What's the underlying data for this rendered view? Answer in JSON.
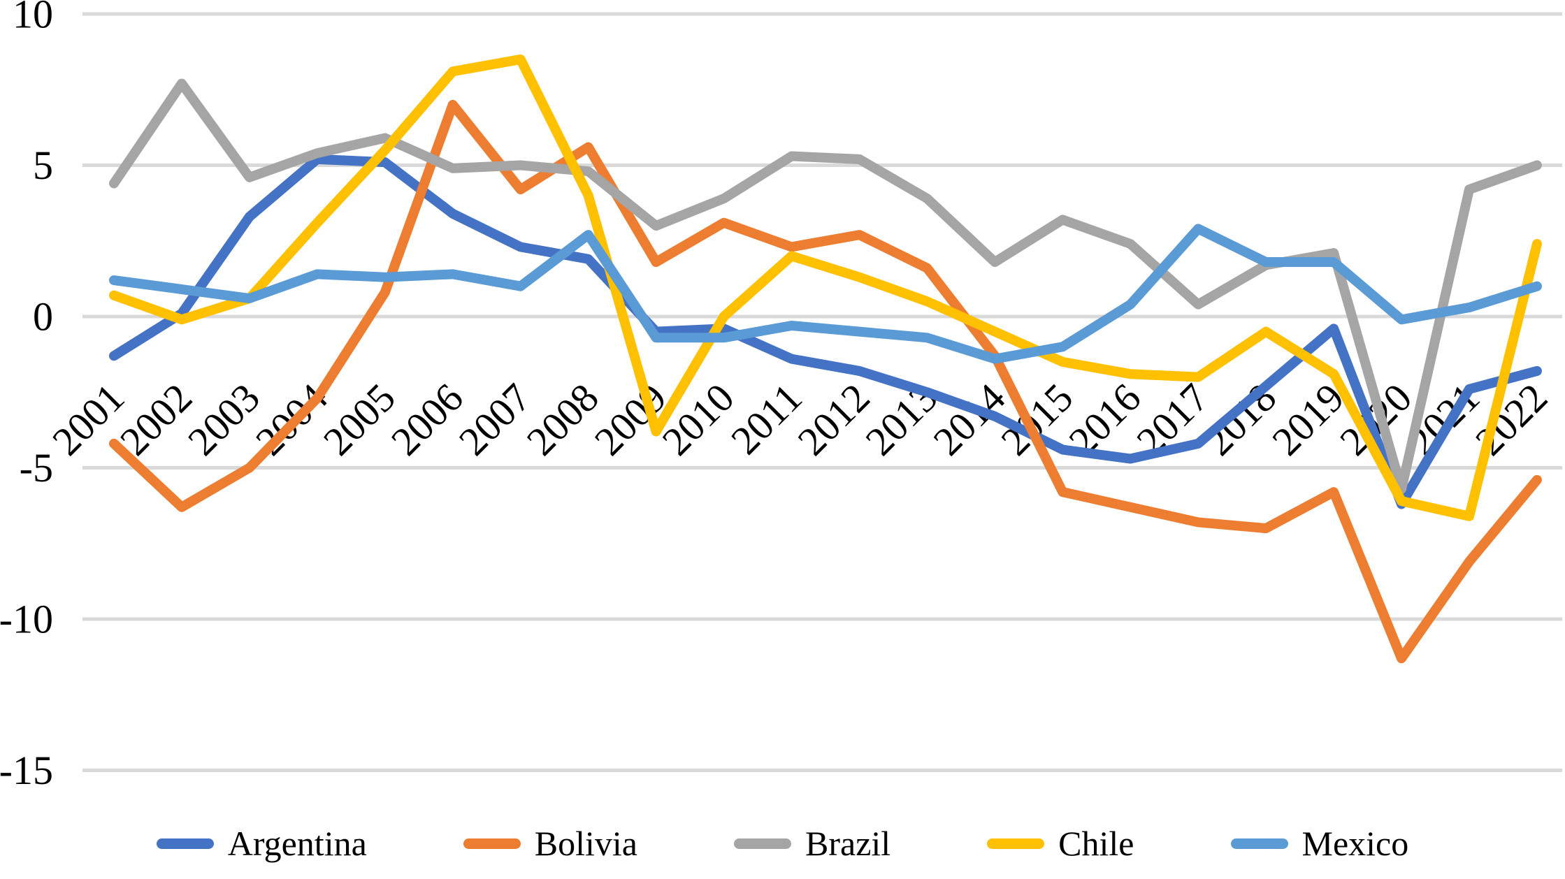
{
  "chart_data": {
    "type": "line",
    "title": "",
    "xlabel": "",
    "ylabel": "",
    "x_labels": [
      "2001",
      "2002",
      "2003",
      "2004",
      "2005",
      "2006",
      "2007",
      "2008",
      "2009",
      "2010",
      "2011",
      "2012",
      "2013",
      "2014",
      "2015",
      "2016",
      "2017",
      "2018",
      "2019",
      "2020",
      "2021",
      "2022"
    ],
    "ylim": [
      -15,
      10
    ],
    "yticks": [
      10,
      5,
      0,
      -5,
      -10,
      -15
    ],
    "ytick_labels": [
      "10",
      "5",
      "0",
      "-5",
      "-10",
      "-15"
    ],
    "grid": true,
    "legend_position": "bottom",
    "series": [
      {
        "name": "Argentina",
        "color": "#4472C4",
        "values": [
          -1.3,
          0.1,
          3.3,
          5.2,
          5.1,
          3.4,
          2.3,
          1.9,
          -0.5,
          -0.4,
          -1.4,
          -1.8,
          -2.5,
          -3.3,
          -4.4,
          -4.7,
          -4.2,
          -2.3,
          -0.4,
          -6.2,
          -2.4,
          -1.8
        ]
      },
      {
        "name": "Bolivia",
        "color": "#ED7D31",
        "values": [
          -4.2,
          -6.3,
          -5.0,
          -2.7,
          0.8,
          7.0,
          4.2,
          5.6,
          1.8,
          3.1,
          2.3,
          2.7,
          1.6,
          -1.3,
          -5.8,
          -6.3,
          -6.8,
          -7.0,
          -5.8,
          -11.3,
          -8.1,
          -5.4
        ]
      },
      {
        "name": "Brazil",
        "color": "#A5A5A5",
        "values": [
          4.4,
          7.7,
          4.6,
          5.4,
          5.9,
          4.9,
          5.0,
          4.8,
          3.0,
          3.9,
          5.3,
          5.2,
          3.9,
          1.8,
          3.2,
          2.4,
          0.4,
          1.7,
          2.1,
          -5.7,
          4.2,
          5.0
        ]
      },
      {
        "name": "Chile",
        "color": "#FFC000",
        "values": [
          0.7,
          -0.1,
          0.6,
          3.1,
          5.5,
          8.1,
          8.5,
          4.0,
          -3.8,
          0.0,
          2.0,
          1.3,
          0.5,
          -0.5,
          -1.5,
          -1.9,
          -2.0,
          -0.5,
          -1.9,
          -6.1,
          -6.6,
          2.4
        ]
      },
      {
        "name": "Mexico",
        "color": "#5B9BD5",
        "values": [
          1.2,
          0.9,
          0.6,
          1.4,
          1.3,
          1.4,
          1.0,
          2.7,
          -0.7,
          -0.7,
          -0.3,
          -0.5,
          -0.7,
          -1.4,
          -1.0,
          0.4,
          2.9,
          1.8,
          1.8,
          -0.1,
          0.3,
          1.0
        ]
      }
    ],
    "style": {
      "gridline_color": "#D9D9D9",
      "text_color": "#000000"
    }
  }
}
